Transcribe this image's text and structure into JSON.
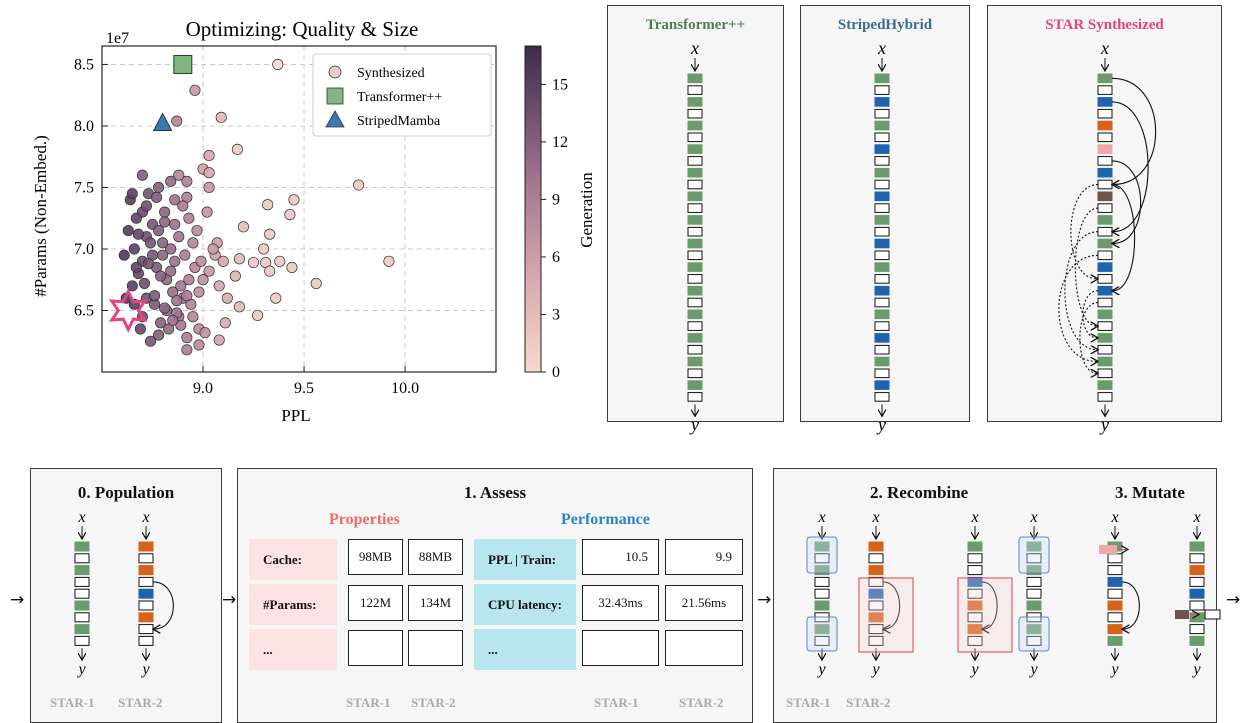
{
  "chart_data": {
    "type": "scatter",
    "title": "Optimizing: Quality & Size",
    "xlabel": "PPL",
    "ylabel": "#Params (Non-Embed.)",
    "y_multiplier": "1e7",
    "xlim": [
      8.5,
      10.45
    ],
    "ylim": [
      6.0,
      8.65
    ],
    "xticks": [
      "9.0",
      "9.5",
      "10.0"
    ],
    "yticks": [
      "6.5",
      "7.0",
      "7.5",
      "8.0",
      "8.5"
    ],
    "grid": true,
    "legend_position": "top-right",
    "legend": [
      "Synthesized",
      "Transformer++",
      "StripedMamba"
    ],
    "colorbar": {
      "label": "Generation",
      "ticks": [
        "0",
        "3",
        "6",
        "9",
        "12",
        "15"
      ],
      "range": [
        0,
        17
      ]
    },
    "series": [
      {
        "name": "Transformer++",
        "marker": "square",
        "color": "#7fb77e",
        "points": [
          [
            8.9,
            8.5
          ]
        ]
      },
      {
        "name": "StripedMamba",
        "marker": "triangle",
        "color": "#3a78b5",
        "points": [
          [
            8.8,
            8.02
          ]
        ]
      },
      {
        "name": "Synthesized",
        "marker": "circle",
        "note_marker": "star at best point",
        "star": [
          8.63,
          6.5
        ],
        "points": [
          [
            9.37,
            8.5
          ],
          [
            8.96,
            8.29
          ],
          [
            8.87,
            8.04
          ],
          [
            9.09,
            8.07
          ],
          [
            9.17,
            7.81
          ],
          [
            9.03,
            7.76
          ],
          [
            9.77,
            7.52
          ],
          [
            9.0,
            7.65
          ],
          [
            9.03,
            7.62
          ],
          [
            8.88,
            7.6
          ],
          [
            8.92,
            7.55
          ],
          [
            9.03,
            7.5
          ],
          [
            8.92,
            7.42
          ],
          [
            9.32,
            7.36
          ],
          [
            9.45,
            7.4
          ],
          [
            9.43,
            7.28
          ],
          [
            9.02,
            7.3
          ],
          [
            9.2,
            7.18
          ],
          [
            9.33,
            7.12
          ],
          [
            9.07,
            7.05
          ],
          [
            9.3,
            7.0
          ],
          [
            9.06,
            6.95
          ],
          [
            9.18,
            6.92
          ],
          [
            9.31,
            6.89
          ],
          [
            9.25,
            6.89
          ],
          [
            9.38,
            6.9
          ],
          [
            9.44,
            6.85
          ],
          [
            9.33,
            6.82
          ],
          [
            9.92,
            6.9
          ],
          [
            9.56,
            6.72
          ],
          [
            9.03,
            6.82
          ],
          [
            9.16,
            6.78
          ],
          [
            9.36,
            6.6
          ],
          [
            9.18,
            6.53
          ],
          [
            9.27,
            6.46
          ],
          [
            9.11,
            6.4
          ],
          [
            8.98,
            6.35
          ],
          [
            9.01,
            6.32
          ],
          [
            8.92,
            6.28
          ],
          [
            9.08,
            6.26
          ],
          [
            8.98,
            6.22
          ],
          [
            8.92,
            6.18
          ],
          [
            8.62,
            6.6
          ],
          [
            8.65,
            6.7
          ],
          [
            8.68,
            6.8
          ],
          [
            8.7,
            6.9
          ],
          [
            8.66,
            7.0
          ],
          [
            8.72,
            7.1
          ],
          [
            8.75,
            7.2
          ],
          [
            8.7,
            7.3
          ],
          [
            8.64,
            7.4
          ],
          [
            8.73,
            7.45
          ],
          [
            8.78,
            7.5
          ],
          [
            8.67,
            7.25
          ],
          [
            8.74,
            7.05
          ],
          [
            8.8,
            6.95
          ],
          [
            8.77,
            6.85
          ],
          [
            8.82,
            6.75
          ],
          [
            8.85,
            6.65
          ],
          [
            8.72,
            6.6
          ],
          [
            8.76,
            6.55
          ],
          [
            8.82,
            6.5
          ],
          [
            8.88,
            6.45
          ],
          [
            8.79,
            6.4
          ],
          [
            8.7,
            6.45
          ],
          [
            8.66,
            6.55
          ],
          [
            8.84,
            7.0
          ],
          [
            8.88,
            7.1
          ],
          [
            8.86,
            7.2
          ],
          [
            8.81,
            7.3
          ],
          [
            8.9,
            7.35
          ],
          [
            8.93,
            7.25
          ],
          [
            8.95,
            7.05
          ],
          [
            8.91,
            6.95
          ],
          [
            8.96,
            6.85
          ],
          [
            8.93,
            6.75
          ],
          [
            8.98,
            6.65
          ],
          [
            8.94,
            6.55
          ],
          [
            8.9,
            6.6
          ],
          [
            8.83,
            6.35
          ],
          [
            8.78,
            6.3
          ],
          [
            8.74,
            6.25
          ],
          [
            8.69,
            6.35
          ],
          [
            8.61,
            6.95
          ],
          [
            8.63,
            7.15
          ],
          [
            8.68,
            7.12
          ],
          [
            8.77,
            7.42
          ],
          [
            8.84,
            7.55
          ],
          [
            8.81,
            7.22
          ],
          [
            8.86,
            6.9
          ],
          [
            8.79,
            6.78
          ],
          [
            8.75,
            6.95
          ],
          [
            8.71,
            6.72
          ],
          [
            8.67,
            6.85
          ],
          [
            8.87,
            6.58
          ],
          [
            8.99,
            6.9
          ],
          [
            8.97,
            7.15
          ],
          [
            9.05,
            7.0
          ],
          [
            9.08,
            6.7
          ],
          [
            8.95,
            6.45
          ],
          [
            8.89,
            6.38
          ],
          [
            8.87,
            6.48
          ],
          [
            8.72,
            7.35
          ],
          [
            8.65,
            7.45
          ],
          [
            8.7,
            7.6
          ],
          [
            8.8,
            7.05
          ],
          [
            8.84,
            6.82
          ],
          [
            8.89,
            6.7
          ],
          [
            8.92,
            6.62
          ],
          [
            9.0,
            6.75
          ],
          [
            9.1,
            6.9
          ],
          [
            9.12,
            6.6
          ],
          [
            8.86,
            7.4
          ],
          [
            8.78,
            7.15
          ],
          [
            8.73,
            6.88
          ],
          [
            8.76,
            6.62
          ],
          [
            8.81,
            6.52
          ],
          [
            8.85,
            6.42
          ]
        ]
      }
    ]
  },
  "architectures": {
    "transformer": {
      "title": "Transformer++",
      "title_color": "#4e7f4e"
    },
    "striped": {
      "title": "StripedHybrid",
      "title_color": "#3c6a97"
    },
    "star": {
      "title": "STAR Synthesized",
      "title_color": "#e8417f"
    },
    "x_symbol": "x",
    "y_symbol": "y"
  },
  "colors": {
    "green": "#6b9a6b",
    "blue": "#1f62b0",
    "orange": "#d9621a",
    "pink": "#f2a6a6",
    "brown": "#6e5450",
    "properties_fill": "#fde2e4",
    "performance_fill": "#b8e6ef"
  },
  "population": {
    "title": "0. Population"
  },
  "assess": {
    "title": "1. Assess",
    "properties_label": "Properties",
    "performance_label": "Performance",
    "rows": [
      {
        "prop": "Cache:",
        "p1": "98MB",
        "p2": "88MB",
        "perf": "PPL | Train:",
        "f1": "10.5",
        "f2": "9.9"
      },
      {
        "prop": "#Params:",
        "p1": "122M",
        "p2": "134M",
        "perf": "CPU latency:",
        "f1": "32.43ms",
        "f2": "21.56ms"
      },
      {
        "prop": "...",
        "p1": "",
        "p2": "",
        "perf": "...",
        "f1": "",
        "f2": ""
      }
    ]
  },
  "recombine": {
    "title": "2. Recombine"
  },
  "mutate": {
    "title": "3. Mutate"
  },
  "labels": {
    "star1": "STAR-1",
    "star2": "STAR-2"
  },
  "flow_arrow": "→"
}
